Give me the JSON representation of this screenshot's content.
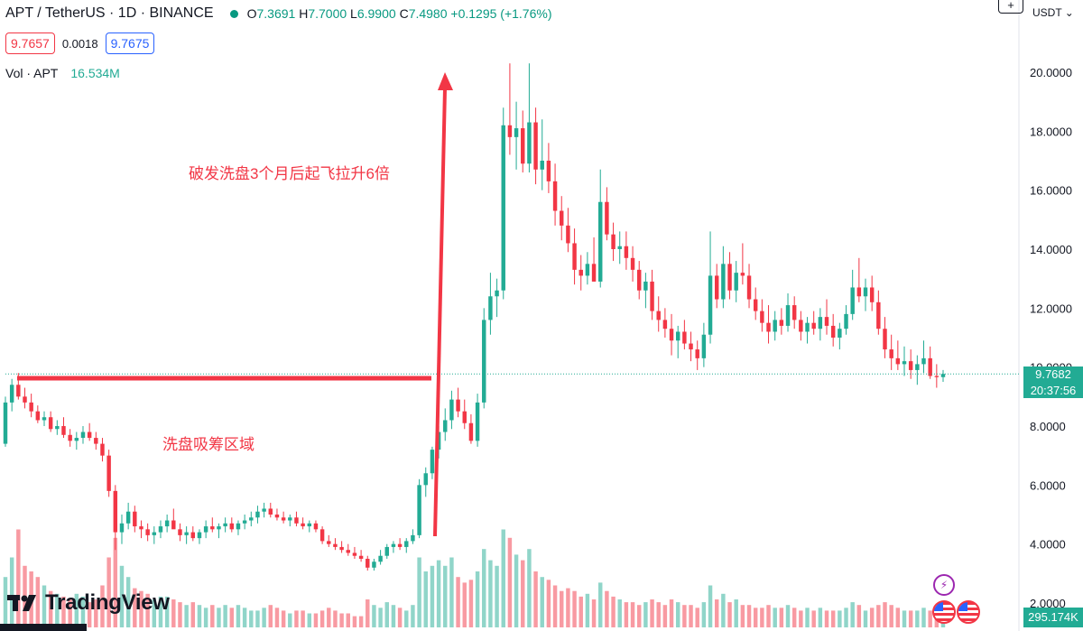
{
  "header": {
    "symbol": "APT / TetherUS · 1D · BINANCE",
    "open_label": "O",
    "open": "7.3691",
    "high_label": "H",
    "high": "7.7000",
    "low_label": "L",
    "low": "6.9900",
    "close_label": "C",
    "close": "7.4980",
    "change": "+0.1295 (+1.76%)"
  },
  "order": {
    "sell_price": "9.7657",
    "spread": "0.0018",
    "buy_price": "9.7675"
  },
  "volume_legend": {
    "label": "Vol · APT",
    "value": "16.534M"
  },
  "currency": "USDT",
  "add_button": "+",
  "price_badge": "9.7682",
  "countdown": "20:37:56",
  "volume_badge": "295.174K",
  "logo_text": "TradingView",
  "bolt_glyph": "⚡",
  "annotations": {
    "breakout": "破发洗盘3个月后起飞拉升6倍",
    "accumulation": "洗盘吸筹区域"
  },
  "colors": {
    "up": "#22ab94",
    "down": "#f23645",
    "annotation": "#f23645",
    "price_badge": "#22ab94"
  },
  "chart_data": {
    "type": "candlestick",
    "title": "APT / TetherUS · 1D · BINANCE",
    "ylim": [
      1.5,
      21.0
    ],
    "y_ticks": [
      "2.0000",
      "4.0000",
      "6.0000",
      "8.0000",
      "10.0000",
      "12.0000",
      "14.0000",
      "16.0000",
      "18.0000",
      "20.0000"
    ],
    "last_price": 9.7682,
    "grid": false,
    "volume_max_k": 5000,
    "series": [
      {
        "name": "price",
        "candles": [
          [
            7.4,
            9.0,
            7.3,
            8.8
          ],
          [
            8.8,
            9.6,
            8.5,
            9.4
          ],
          [
            9.4,
            9.8,
            8.9,
            9.0
          ],
          [
            9.0,
            9.3,
            8.6,
            8.8
          ],
          [
            8.8,
            9.1,
            8.3,
            8.5
          ],
          [
            8.5,
            8.7,
            8.1,
            8.2
          ],
          [
            8.2,
            8.5,
            8.0,
            8.3
          ],
          [
            8.3,
            8.5,
            7.8,
            7.9
          ],
          [
            7.9,
            8.2,
            7.7,
            8.0
          ],
          [
            8.0,
            8.3,
            7.6,
            7.7
          ],
          [
            7.7,
            7.9,
            7.3,
            7.5
          ],
          [
            7.5,
            7.8,
            7.2,
            7.6
          ],
          [
            7.6,
            8.0,
            7.4,
            7.8
          ],
          [
            7.8,
            8.1,
            7.5,
            7.6
          ],
          [
            7.6,
            7.8,
            7.2,
            7.4
          ],
          [
            7.4,
            7.6,
            6.8,
            7.0
          ],
          [
            7.0,
            7.2,
            5.6,
            5.8
          ],
          [
            5.8,
            6.0,
            3.8,
            4.4
          ],
          [
            4.4,
            5.0,
            4.0,
            4.7
          ],
          [
            4.7,
            5.4,
            4.5,
            5.1
          ],
          [
            5.1,
            5.3,
            4.4,
            4.6
          ],
          [
            4.6,
            4.8,
            4.2,
            4.5
          ],
          [
            4.5,
            4.7,
            4.1,
            4.3
          ],
          [
            4.3,
            4.6,
            4.0,
            4.4
          ],
          [
            4.4,
            4.8,
            4.2,
            4.6
          ],
          [
            4.6,
            5.0,
            4.4,
            4.8
          ],
          [
            4.8,
            5.2,
            4.6,
            4.5
          ],
          [
            4.5,
            4.7,
            4.1,
            4.3
          ],
          [
            4.3,
            4.6,
            4.0,
            4.4
          ],
          [
            4.4,
            4.6,
            4.1,
            4.2
          ],
          [
            4.2,
            4.5,
            4.0,
            4.4
          ],
          [
            4.4,
            4.8,
            4.2,
            4.6
          ],
          [
            4.6,
            4.9,
            4.4,
            4.5
          ],
          [
            4.5,
            4.7,
            4.2,
            4.6
          ],
          [
            4.6,
            4.9,
            4.4,
            4.7
          ],
          [
            4.7,
            4.9,
            4.4,
            4.5
          ],
          [
            4.5,
            4.8,
            4.3,
            4.7
          ],
          [
            4.7,
            5.0,
            4.5,
            4.8
          ],
          [
            4.8,
            5.1,
            4.6,
            4.9
          ],
          [
            4.9,
            5.3,
            4.7,
            5.1
          ],
          [
            5.1,
            5.4,
            4.9,
            5.2
          ],
          [
            5.2,
            5.4,
            4.9,
            5.0
          ],
          [
            5.0,
            5.2,
            4.8,
            4.9
          ],
          [
            4.9,
            5.1,
            4.7,
            4.8
          ],
          [
            4.8,
            5.0,
            4.6,
            4.9
          ],
          [
            4.9,
            5.1,
            4.6,
            4.7
          ],
          [
            4.7,
            4.9,
            4.5,
            4.6
          ],
          [
            4.6,
            4.8,
            4.4,
            4.7
          ],
          [
            4.7,
            4.8,
            4.4,
            4.5
          ],
          [
            4.5,
            4.6,
            4.0,
            4.1
          ],
          [
            4.1,
            4.3,
            3.9,
            4.0
          ],
          [
            4.0,
            4.2,
            3.8,
            3.9
          ],
          [
            3.9,
            4.1,
            3.7,
            3.8
          ],
          [
            3.8,
            4.0,
            3.6,
            3.7
          ],
          [
            3.7,
            3.9,
            3.5,
            3.6
          ],
          [
            3.6,
            3.8,
            3.4,
            3.5
          ],
          [
            3.5,
            3.6,
            3.1,
            3.2
          ],
          [
            3.2,
            3.5,
            3.1,
            3.4
          ],
          [
            3.4,
            3.8,
            3.3,
            3.6
          ],
          [
            3.6,
            4.0,
            3.5,
            3.9
          ],
          [
            3.9,
            4.1,
            3.7,
            4.0
          ],
          [
            4.0,
            4.2,
            3.8,
            3.9
          ],
          [
            3.9,
            4.2,
            3.7,
            4.1
          ],
          [
            4.1,
            4.5,
            4.0,
            4.3
          ],
          [
            4.3,
            6.2,
            4.2,
            6.0
          ],
          [
            6.0,
            6.6,
            5.6,
            6.4
          ],
          [
            6.4,
            7.3,
            6.2,
            7.2
          ],
          [
            7.2,
            8.0,
            6.9,
            7.8
          ],
          [
            7.8,
            8.6,
            7.5,
            8.2
          ],
          [
            8.2,
            9.2,
            7.9,
            8.9
          ],
          [
            8.9,
            9.3,
            8.3,
            8.5
          ],
          [
            8.5,
            8.9,
            7.9,
            8.1
          ],
          [
            8.1,
            8.4,
            7.4,
            7.5
          ],
          [
            7.5,
            9.1,
            7.3,
            8.8
          ],
          [
            8.8,
            12.0,
            8.6,
            11.6
          ],
          [
            11.6,
            13.2,
            11.1,
            12.4
          ],
          [
            12.4,
            13.0,
            11.7,
            12.6
          ],
          [
            12.6,
            18.8,
            12.3,
            18.2
          ],
          [
            18.2,
            20.3,
            17.2,
            17.8
          ],
          [
            17.8,
            19.0,
            16.7,
            18.1
          ],
          [
            18.1,
            18.7,
            16.6,
            16.9
          ],
          [
            16.9,
            20.3,
            16.6,
            18.3
          ],
          [
            18.3,
            18.8,
            16.2,
            16.7
          ],
          [
            16.7,
            18.4,
            16.0,
            17.0
          ],
          [
            17.0,
            17.6,
            15.9,
            16.3
          ],
          [
            16.3,
            16.9,
            14.8,
            15.3
          ],
          [
            15.3,
            15.8,
            14.3,
            14.8
          ],
          [
            14.8,
            15.4,
            13.9,
            14.2
          ],
          [
            14.2,
            14.7,
            12.8,
            13.3
          ],
          [
            13.3,
            13.8,
            12.6,
            13.1
          ],
          [
            13.1,
            13.9,
            12.8,
            13.5
          ],
          [
            13.5,
            14.4,
            12.9,
            12.9
          ],
          [
            12.9,
            16.7,
            12.7,
            15.6
          ],
          [
            15.6,
            16.1,
            14.3,
            14.5
          ],
          [
            14.5,
            14.9,
            13.6,
            14.0
          ],
          [
            14.0,
            14.6,
            13.5,
            14.1
          ],
          [
            14.1,
            14.6,
            13.3,
            13.7
          ],
          [
            13.7,
            14.1,
            12.9,
            13.3
          ],
          [
            13.3,
            13.6,
            12.3,
            12.6
          ],
          [
            12.6,
            13.2,
            12.0,
            12.9
          ],
          [
            12.9,
            13.3,
            11.6,
            11.9
          ],
          [
            11.9,
            12.4,
            11.2,
            11.6
          ],
          [
            11.6,
            12.0,
            11.0,
            11.3
          ],
          [
            11.3,
            11.8,
            10.4,
            10.9
          ],
          [
            10.9,
            11.4,
            10.3,
            11.2
          ],
          [
            11.2,
            11.6,
            10.6,
            10.8
          ],
          [
            10.8,
            11.2,
            10.2,
            10.6
          ],
          [
            10.6,
            10.9,
            9.9,
            10.3
          ],
          [
            10.3,
            11.5,
            10.0,
            11.1
          ],
          [
            11.1,
            14.6,
            10.8,
            13.1
          ],
          [
            13.1,
            13.5,
            12.0,
            12.3
          ],
          [
            12.3,
            14.1,
            12.0,
            13.5
          ],
          [
            13.5,
            13.9,
            12.3,
            12.6
          ],
          [
            12.6,
            13.6,
            12.2,
            13.2
          ],
          [
            13.2,
            14.2,
            12.8,
            13.1
          ],
          [
            13.1,
            13.5,
            12.0,
            12.3
          ],
          [
            12.3,
            12.7,
            11.6,
            11.9
          ],
          [
            11.9,
            12.3,
            11.2,
            11.5
          ],
          [
            11.5,
            12.1,
            10.8,
            11.2
          ],
          [
            11.2,
            11.9,
            10.9,
            11.6
          ],
          [
            11.6,
            12.0,
            11.1,
            11.4
          ],
          [
            11.4,
            12.5,
            11.2,
            12.1
          ],
          [
            12.1,
            12.4,
            11.3,
            11.6
          ],
          [
            11.6,
            11.9,
            10.9,
            11.2
          ],
          [
            11.2,
            11.7,
            10.8,
            11.5
          ],
          [
            11.5,
            11.9,
            11.1,
            11.3
          ],
          [
            11.3,
            12.0,
            10.9,
            11.7
          ],
          [
            11.7,
            12.3,
            11.1,
            11.4
          ],
          [
            11.4,
            11.8,
            10.7,
            11.0
          ],
          [
            11.0,
            11.5,
            10.6,
            11.3
          ],
          [
            11.3,
            12.1,
            11.1,
            11.8
          ],
          [
            11.8,
            13.3,
            11.6,
            12.7
          ],
          [
            12.7,
            13.7,
            12.2,
            12.4
          ],
          [
            12.4,
            13.0,
            11.9,
            12.7
          ],
          [
            12.7,
            13.1,
            11.9,
            12.2
          ],
          [
            12.2,
            12.6,
            11.1,
            11.3
          ],
          [
            11.3,
            11.7,
            10.3,
            10.6
          ],
          [
            10.6,
            11.1,
            9.9,
            10.3
          ],
          [
            10.3,
            10.9,
            9.9,
            10.1
          ],
          [
            10.1,
            10.7,
            9.7,
            10.2
          ],
          [
            10.2,
            10.6,
            9.6,
            9.9
          ],
          [
            9.9,
            10.4,
            9.4,
            10.1
          ],
          [
            10.1,
            10.9,
            9.8,
            10.3
          ],
          [
            10.3,
            10.7,
            9.6,
            9.7
          ],
          [
            9.7,
            10.1,
            9.3,
            9.66
          ],
          [
            9.66,
            9.9,
            9.5,
            9.7682
          ]
        ]
      },
      {
        "name": "volume",
        "values_k": [
          1800,
          2500,
          3500,
          2200,
          2000,
          1800,
          1500,
          1300,
          1200,
          1100,
          1000,
          1200,
          1100,
          900,
          1000,
          1500,
          2500,
          3200,
          2200,
          1800,
          1400,
          1300,
          1200,
          1000,
          1100,
          1100,
          1000,
          900,
          800,
          900,
          800,
          700,
          800,
          700,
          800,
          700,
          800,
          700,
          600,
          600,
          700,
          800,
          700,
          600,
          500,
          600,
          600,
          500,
          500,
          600,
          700,
          600,
          500,
          500,
          400,
          400,
          1000,
          800,
          700,
          900,
          800,
          700,
          600,
          800,
          2500,
          2000,
          2200,
          2400,
          2200,
          2500,
          1800,
          1600,
          1700,
          2000,
          2800,
          2400,
          2200,
          3500,
          3200,
          2600,
          2400,
          2800,
          2000,
          1800,
          1700,
          1500,
          1300,
          1400,
          1300,
          1100,
          1200,
          1000,
          1600,
          1300,
          1100,
          1000,
          900,
          900,
          800,
          900,
          1000,
          900,
          800,
          1000,
          900,
          800,
          800,
          700,
          900,
          1500,
          1000,
          1200,
          900,
          1000,
          800,
          800,
          700,
          700,
          800,
          700,
          700,
          800,
          700,
          600,
          700,
          600,
          700,
          600,
          600,
          600,
          700,
          900,
          800,
          600,
          700,
          800,
          900,
          800,
          700,
          600,
          600,
          600,
          700,
          600,
          500,
          500
        ]
      }
    ]
  }
}
